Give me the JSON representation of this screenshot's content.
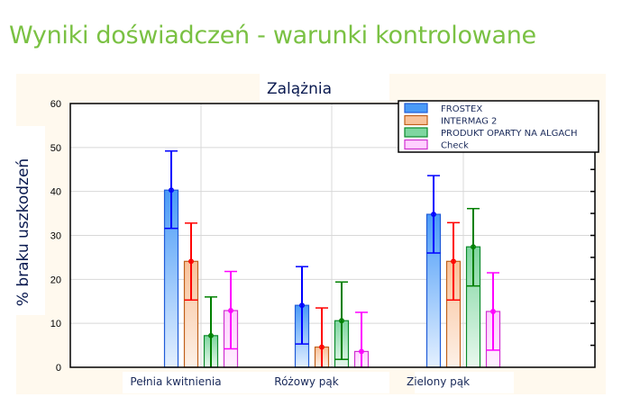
{
  "slide": {
    "title": "Wyniki doświadczeń - warunki kontrolowane"
  },
  "chart_data": {
    "type": "bar",
    "title": "Zalążnia",
    "ylabel": "% braku uszkodzeń",
    "xlabel": "",
    "ylim": [
      0,
      60
    ],
    "yticks": [
      "0",
      "10",
      "20",
      "30",
      "40",
      "50",
      "60"
    ],
    "grid": true,
    "legend_position": "top-right",
    "categories": [
      "Pełnia kwitnienia",
      "Różowy pąk",
      "Zielony pąk"
    ],
    "series": [
      {
        "name": "FROSTEX",
        "color": "#1e5bd8",
        "whisker_color": "#0000ff",
        "fill_top": "#4a9bf7",
        "fill_bottom": "#e4f0ff",
        "values": [
          40.3,
          14.1,
          34.8
        ],
        "lower": [
          31.6,
          5.3,
          26.0
        ],
        "upper": [
          49.2,
          22.9,
          43.6
        ]
      },
      {
        "name": "INTERMAG 2",
        "color": "#c0601a",
        "whisker_color": "#ff0000",
        "fill_top": "#f9c29a",
        "fill_bottom": "#fdf1e8",
        "values": [
          24.1,
          4.6,
          24.1
        ],
        "lower": [
          15.3,
          0,
          15.3
        ],
        "upper": [
          32.8,
          13.5,
          32.9
        ]
      },
      {
        "name": "PRODUKT OPARTY NA ALGACH",
        "color": "#0a8a2a",
        "whisker_color": "#008000",
        "fill_top": "#7fd6a0",
        "fill_bottom": "#e8f8ee",
        "values": [
          7.2,
          10.6,
          27.4
        ],
        "lower": [
          0,
          1.8,
          18.5
        ],
        "upper": [
          16.0,
          19.4,
          36.1
        ]
      },
      {
        "name": "Check",
        "color": "#d030d0",
        "whisker_color": "#ff00ff",
        "fill_top": "#ffd0ff",
        "fill_bottom": "#fff0ff",
        "values": [
          12.9,
          3.6,
          12.7
        ],
        "lower": [
          4.2,
          0,
          3.9
        ],
        "upper": [
          21.8,
          12.5,
          21.5
        ]
      }
    ]
  }
}
